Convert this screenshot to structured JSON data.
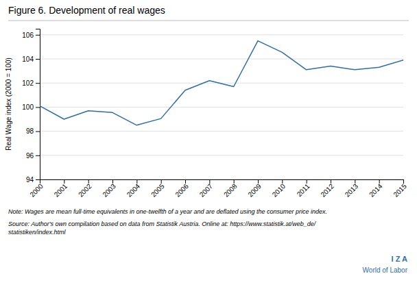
{
  "chart_data": {
    "type": "line",
    "title": "Figure 6.  Development of real wages",
    "ylabel": "Real Wage index (2000 = 100)",
    "x": [
      2000,
      2001,
      2002,
      2003,
      2004,
      2005,
      2006,
      2007,
      2008,
      2009,
      2010,
      2011,
      2012,
      2013,
      2014,
      2015
    ],
    "values": [
      100.1,
      99.0,
      99.7,
      99.55,
      98.5,
      99.05,
      101.4,
      102.2,
      101.7,
      105.5,
      104.55,
      103.1,
      103.4,
      103.1,
      103.3,
      103.9
    ],
    "color": "#2e6ea6",
    "xlim": [
      2000,
      2015
    ],
    "xticks": [
      2000,
      2001,
      2002,
      2003,
      2004,
      2005,
      2006,
      2007,
      2008,
      2009,
      2010,
      2011,
      2012,
      2013,
      2014,
      2015
    ],
    "ylim": [
      94,
      106.5
    ],
    "yticks": [
      94,
      96,
      98,
      100,
      102,
      104,
      106
    ],
    "grid": true,
    "annotations": [
      "Note:  Wages are mean full-time equivalents in one-twelfth of a year and are deflated using the consumer price index.",
      "Source:  Author's own compilation based on data from Statistik Austria. Online at:  https://www.statistik.at/web_de/\nstatistiken/index.html",
      "I Z A",
      "World of Labor"
    ]
  }
}
